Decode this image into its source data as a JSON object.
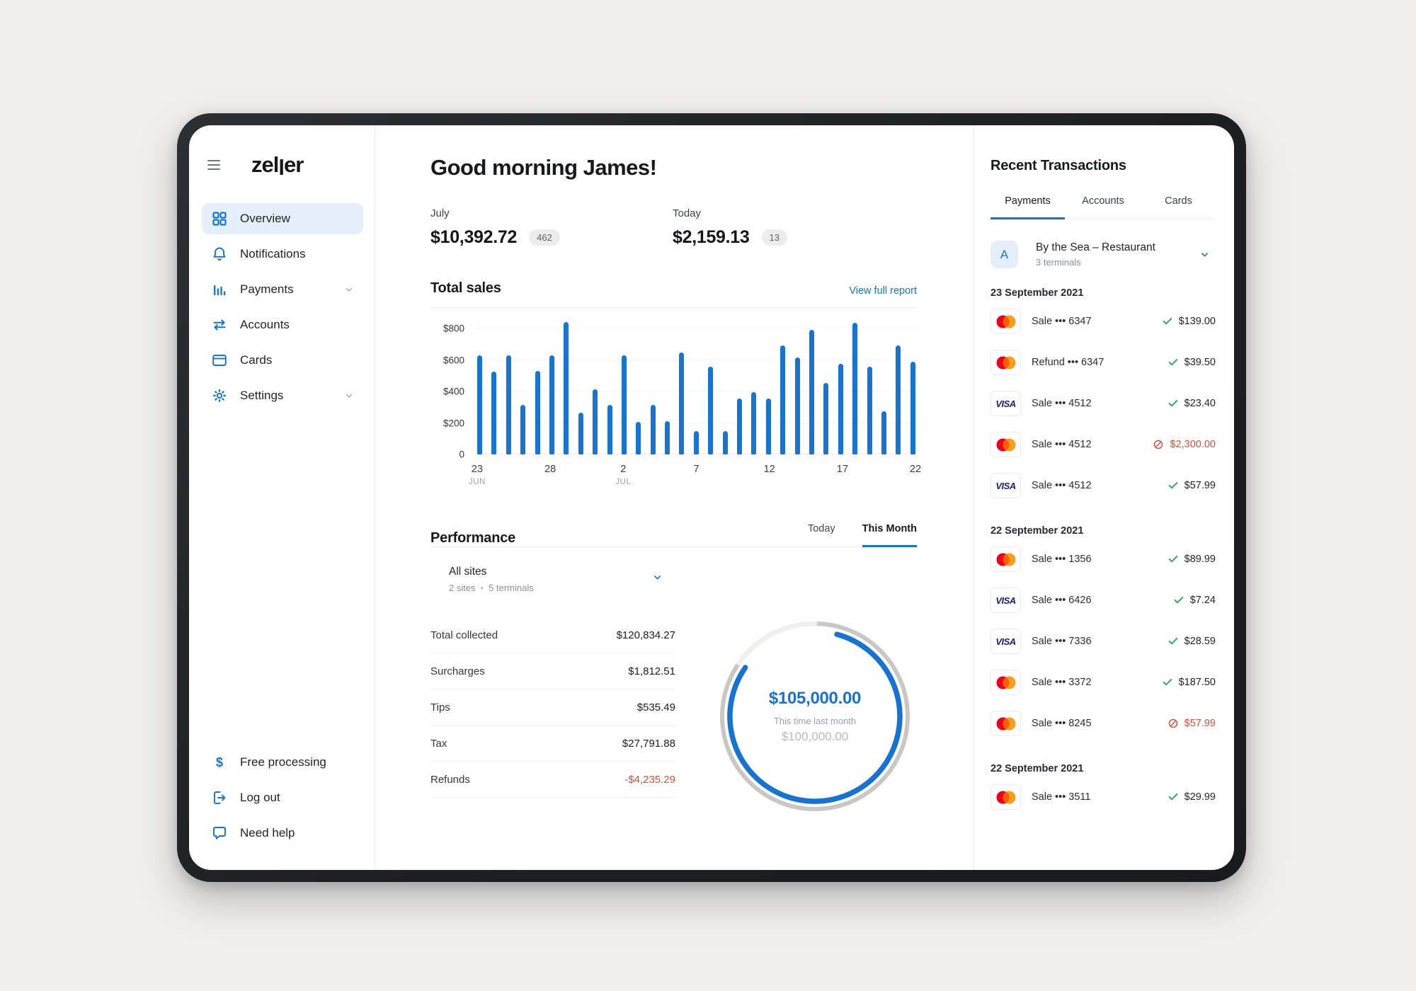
{
  "sidebar": {
    "logo": "zeller",
    "items": [
      {
        "label": "Overview",
        "icon": "grid",
        "active": true,
        "chevron": false
      },
      {
        "label": "Notifications",
        "icon": "bell",
        "active": false,
        "chevron": false
      },
      {
        "label": "Payments",
        "icon": "barchart",
        "active": false,
        "chevron": true
      },
      {
        "label": "Accounts",
        "icon": "transfer",
        "active": false,
        "chevron": false
      },
      {
        "label": "Cards",
        "icon": "card",
        "active": false,
        "chevron": false
      },
      {
        "label": "Settings",
        "icon": "gear",
        "active": false,
        "chevron": true
      }
    ],
    "footer_items": [
      {
        "label": "Free processing",
        "icon": "dollar"
      },
      {
        "label": "Log out",
        "icon": "logout"
      },
      {
        "label": "Need help",
        "icon": "chat"
      }
    ]
  },
  "header": {
    "greeting": "Good morning James!"
  },
  "stats": [
    {
      "label": "July",
      "value": "$10,392.72",
      "badge": "462"
    },
    {
      "label": "Today",
      "value": "$2,159.13",
      "badge": "13"
    }
  ],
  "total_sales": {
    "title": "Total sales",
    "link": "View full report"
  },
  "chart_data": [
    {
      "type": "bar",
      "title": "Total sales",
      "values": [
        630,
        525,
        630,
        315,
        530,
        630,
        840,
        265,
        415,
        315,
        630,
        205,
        315,
        210,
        650,
        150,
        560,
        150,
        355,
        395,
        355,
        695,
        615,
        790,
        455,
        575,
        835,
        560,
        275,
        695,
        590
      ],
      "x_ticks": [
        {
          "index": 0,
          "label": "23",
          "sublabel": "JUN"
        },
        {
          "index": 5,
          "label": "28",
          "sublabel": ""
        },
        {
          "index": 10,
          "label": "2",
          "sublabel": "JUL"
        },
        {
          "index": 15,
          "label": "7",
          "sublabel": ""
        },
        {
          "index": 20,
          "label": "12",
          "sublabel": ""
        },
        {
          "index": 25,
          "label": "17",
          "sublabel": ""
        },
        {
          "index": 30,
          "label": "22",
          "sublabel": ""
        }
      ],
      "y_ticks": [
        {
          "value": 0,
          "label": "0"
        },
        {
          "value": 200,
          "label": "$200"
        },
        {
          "value": 400,
          "label": "$400"
        },
        {
          "value": 600,
          "label": "$600"
        },
        {
          "value": 800,
          "label": "$800"
        }
      ],
      "ylim": [
        0,
        900
      ],
      "grid": true,
      "bar_color": "#1774d1"
    },
    {
      "type": "gauge",
      "value": "$105,000.00",
      "caption": "This time last month",
      "previous": "$100,000.00",
      "progress_color": "#1673d1",
      "track_color": "#c9c6c3"
    }
  ],
  "performance": {
    "title": "Performance",
    "tabs": [
      {
        "label": "Today",
        "active": false
      },
      {
        "label": "This Month",
        "active": true
      }
    ],
    "site_selector": {
      "title": "All sites",
      "sites": "2 sites",
      "terminals": "5 terminals"
    },
    "rows": [
      {
        "label": "Total collected",
        "value": "$120,834.27",
        "negative": false
      },
      {
        "label": "Surcharges",
        "value": "$1,812.51",
        "negative": false
      },
      {
        "label": "Tips",
        "value": "$535.49",
        "negative": false
      },
      {
        "label": "Tax",
        "value": "$27,791.88",
        "negative": false
      },
      {
        "label": "Refunds",
        "value": "-$4,235.29",
        "negative": true
      }
    ]
  },
  "transactions": {
    "title": "Recent Transactions",
    "tabs": [
      {
        "label": "Payments",
        "active": true
      },
      {
        "label": "Accounts",
        "active": false
      },
      {
        "label": "Cards",
        "active": false
      }
    ],
    "merchant": {
      "initial": "A",
      "name": "By the Sea – Restaurant",
      "subtitle": "3 terminals"
    },
    "groups": [
      {
        "date": "23 September 2021",
        "items": [
          {
            "scheme": "mastercard",
            "label": "Sale ••• 6347",
            "status": "approved",
            "amount": "$139.00"
          },
          {
            "scheme": "mastercard",
            "label": "Refund ••• 6347",
            "status": "approved",
            "amount": "$39.50"
          },
          {
            "scheme": "visa",
            "label": "Sale ••• 4512",
            "status": "approved",
            "amount": "$23.40"
          },
          {
            "scheme": "mastercard",
            "label": "Sale ••• 4512",
            "status": "declined",
            "amount": "$2,300.00"
          },
          {
            "scheme": "visa",
            "label": "Sale ••• 4512",
            "status": "approved",
            "amount": "$57.99"
          }
        ]
      },
      {
        "date": "22 September 2021",
        "items": [
          {
            "scheme": "mastercard",
            "label": "Sale ••• 1356",
            "status": "approved",
            "amount": "$89.99"
          },
          {
            "scheme": "visa",
            "label": "Sale ••• 6426",
            "status": "approved",
            "amount": "$7.24"
          },
          {
            "scheme": "visa",
            "label": "Sale ••• 7336",
            "status": "approved",
            "amount": "$28.59"
          },
          {
            "scheme": "mastercard",
            "label": "Sale ••• 3372",
            "status": "approved",
            "amount": "$187.50"
          },
          {
            "scheme": "mastercard",
            "label": "Sale ••• 8245",
            "status": "declined",
            "amount": "$57.99"
          }
        ]
      },
      {
        "date": "22 September 2021",
        "items": [
          {
            "scheme": "mastercard",
            "label": "Sale ••• 3511",
            "status": "approved",
            "amount": "$29.99"
          }
        ]
      }
    ]
  },
  "colors": {
    "accent_blue": "#1673d1",
    "nav_active_bg": "#e4effa",
    "success_green": "#36a66a",
    "error_red": "#d6503c",
    "gauge_track": "#c9c6c3",
    "mastercard_red": "#eb001b",
    "mastercard_orange": "#f79e1b",
    "visa_navy": "#1a1f71"
  }
}
